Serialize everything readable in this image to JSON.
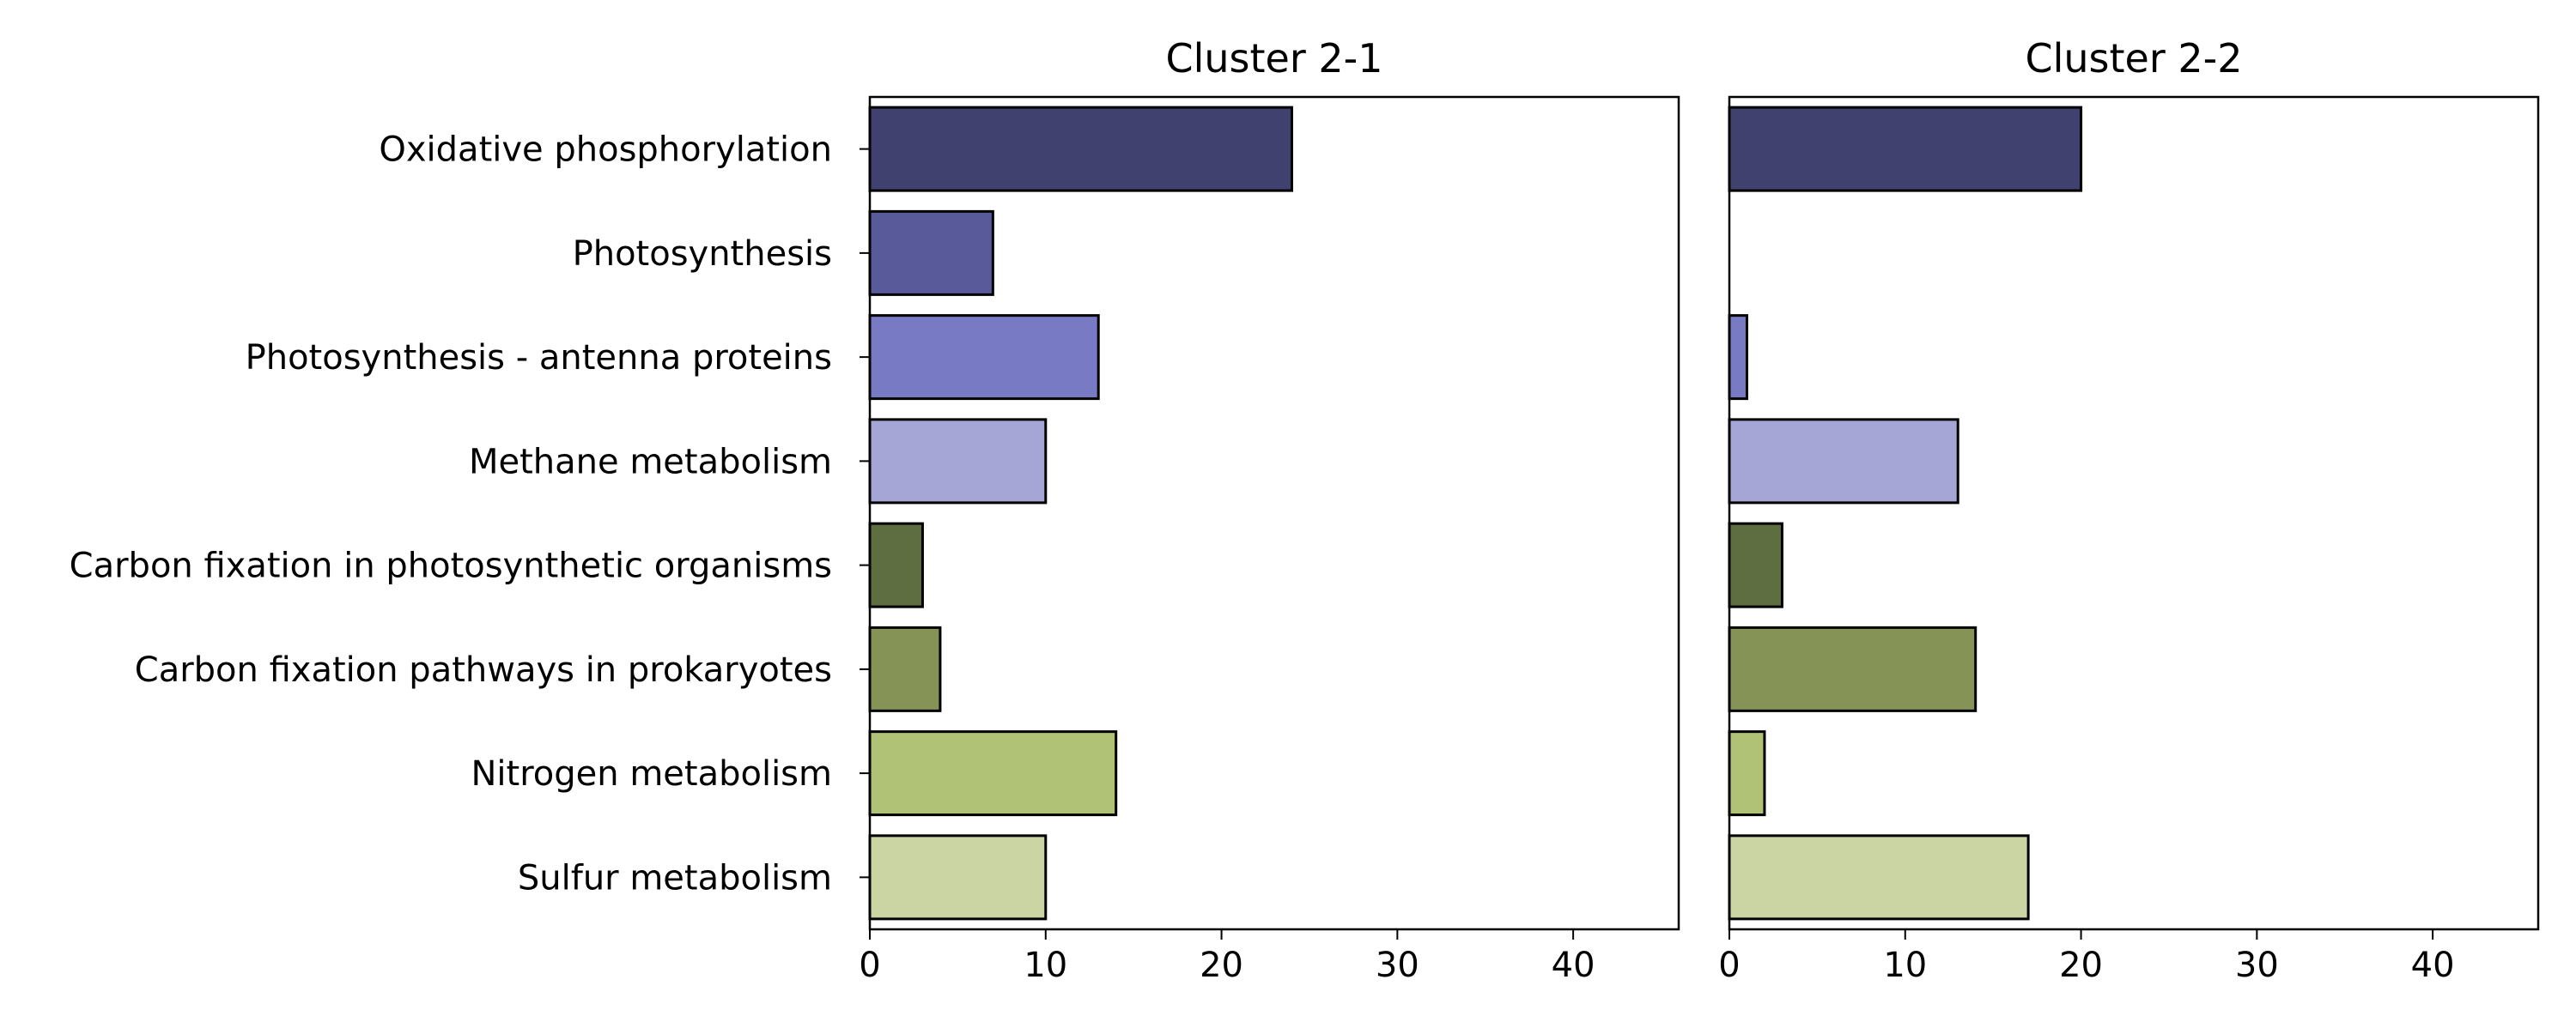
{
  "chart_data": [
    {
      "type": "bar",
      "orientation": "horizontal",
      "title": "Cluster 2-1",
      "categories": [
        "Oxidative phosphorylation",
        "Photosynthesis",
        "Photosynthesis - antenna proteins",
        "Methane metabolism",
        "Carbon fixation in photosynthetic organisms",
        "Carbon fixation pathways in prokaryotes",
        "Nitrogen metabolism",
        "Sulfur metabolism"
      ],
      "values": [
        24,
        7,
        13,
        10,
        3,
        4,
        14,
        10
      ],
      "colors": [
        "#414170",
        "#585a9a",
        "#797ac4",
        "#a5a5d6",
        "#5e6e41",
        "#859456",
        "#afc276",
        "#cbd5a4"
      ],
      "xlim": [
        0,
        46
      ],
      "xticks": [
        0,
        10,
        20,
        30,
        40
      ],
      "xlabel": "",
      "ylabel": "",
      "grid": false
    },
    {
      "type": "bar",
      "orientation": "horizontal",
      "title": "Cluster 2-2",
      "categories": [
        "Oxidative phosphorylation",
        "Photosynthesis",
        "Photosynthesis - antenna proteins",
        "Methane metabolism",
        "Carbon fixation in photosynthetic organisms",
        "Carbon fixation pathways in prokaryotes",
        "Nitrogen metabolism",
        "Sulfur metabolism"
      ],
      "values": [
        20,
        0,
        1,
        13,
        3,
        14,
        2,
        17
      ],
      "colors": [
        "#414170",
        "#585a9a",
        "#797ac4",
        "#a5a5d6",
        "#5e6e41",
        "#859456",
        "#afc276",
        "#cbd5a4"
      ],
      "xlim": [
        0,
        46
      ],
      "xticks": [
        0,
        10,
        20,
        30,
        40
      ],
      "xlabel": "",
      "ylabel": "",
      "grid": false
    }
  ]
}
